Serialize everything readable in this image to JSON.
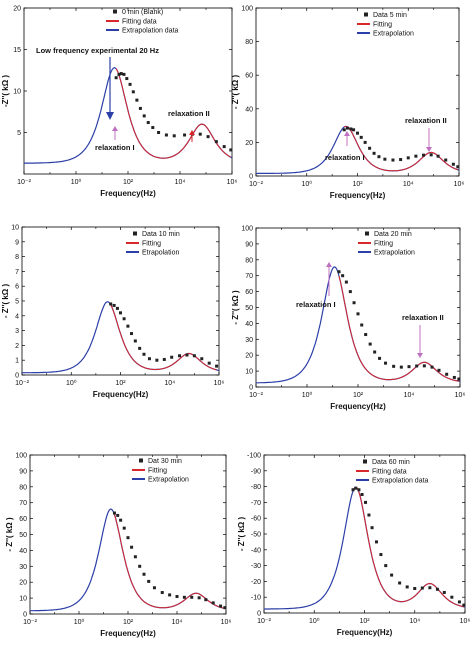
{
  "chart_data": [
    {
      "type": "line",
      "xscale": "log",
      "xlim": [
        0.01,
        1000000
      ],
      "xticks": [
        0.01,
        1,
        100,
        10000,
        1000000
      ],
      "xticklabels": [
        "10⁻²",
        "10⁰",
        "10²",
        "10⁴",
        "10⁶"
      ],
      "ylim": [
        0,
        20
      ],
      "yticks": [
        5,
        10,
        15,
        20
      ],
      "yticklabels": [
        "5",
        "10",
        "15",
        "20"
      ],
      "xlabel": "Frequency(Hz)",
      "ylabel": "-Z''( kΩ )",
      "legend": [
        "0 min (Blank)",
        "Fitting data",
        "Extrapolation data"
      ],
      "annotations": [
        "Low frequency experimental 20 Hz",
        "relaxation I",
        "relaxation II"
      ],
      "peaks": [
        {
          "f": 30,
          "z": 11.5
        },
        {
          "f": 70000,
          "z": 4.7
        }
      ],
      "baseline": 1.3,
      "data_points": [
        [
          35,
          11.6
        ],
        [
          45,
          12.0
        ],
        [
          55,
          12.1
        ],
        [
          70,
          12.0
        ],
        [
          90,
          11.5
        ],
        [
          120,
          10.8
        ],
        [
          160,
          9.9
        ],
        [
          220,
          8.9
        ],
        [
          300,
          7.9
        ],
        [
          420,
          7.0
        ],
        [
          600,
          6.2
        ],
        [
          900,
          5.6
        ],
        [
          1500,
          5.0
        ],
        [
          3000,
          4.7
        ],
        [
          6000,
          4.6
        ],
        [
          15000,
          4.7
        ],
        [
          30000,
          4.8
        ],
        [
          60000,
          4.8
        ],
        [
          120000,
          4.5
        ],
        [
          250000,
          3.9
        ],
        [
          500000,
          3.3
        ],
        [
          900000,
          2.9
        ]
      ]
    },
    {
      "type": "line",
      "xscale": "log",
      "xlim": [
        0.01,
        1000000
      ],
      "xticks": [
        0.01,
        1,
        100,
        10000,
        1000000
      ],
      "xticklabels": [
        "10⁻²",
        "10⁰",
        "10²",
        "10⁴",
        "10⁶"
      ],
      "ylim": [
        0,
        100
      ],
      "yticks": [
        0,
        20,
        40,
        60,
        80,
        100
      ],
      "yticklabels": [
        "0",
        "20",
        "40",
        "60",
        "80",
        "100"
      ],
      "xlabel": "Frequency(Hz)",
      "ylabel": "- Z''( kΩ )",
      "legend": [
        "Data 5 min",
        "Fitting",
        "Extrapolation"
      ],
      "annotations": [
        "relaxation I",
        "relaxation II"
      ],
      "peaks": [
        {
          "f": 35,
          "z": 28
        },
        {
          "f": 80000,
          "z": 12.5
        }
      ],
      "baseline": 1.5,
      "data_points": [
        [
          30,
          27.5
        ],
        [
          40,
          28.5
        ],
        [
          55,
          28.0
        ],
        [
          70,
          27.5
        ],
        [
          100,
          25.5
        ],
        [
          140,
          23.0
        ],
        [
          200,
          20.0
        ],
        [
          300,
          16.5
        ],
        [
          450,
          13.5
        ],
        [
          700,
          11.5
        ],
        [
          1200,
          10.0
        ],
        [
          2500,
          9.5
        ],
        [
          5000,
          9.8
        ],
        [
          10000,
          10.8
        ],
        [
          20000,
          11.8
        ],
        [
          40000,
          12.4
        ],
        [
          80000,
          12.6
        ],
        [
          150000,
          11.8
        ],
        [
          300000,
          9.5
        ],
        [
          600000,
          7.0
        ],
        [
          900000,
          5.5
        ]
      ]
    },
    {
      "type": "line",
      "xscale": "log",
      "xlim": [
        0.01,
        1000000
      ],
      "xticks": [
        0.01,
        1,
        100,
        10000,
        1000000
      ],
      "xticklabels": [
        "10⁻²",
        "10⁰",
        "10²",
        "10⁴",
        "10⁶"
      ],
      "ylim": [
        0,
        10
      ],
      "yticks": [
        0,
        1,
        2,
        3,
        4,
        5,
        6,
        7,
        8,
        9,
        10
      ],
      "yticklabels": [
        "0",
        "1",
        "2",
        "3",
        "4",
        "5",
        "6",
        "7",
        "8",
        "9",
        "10"
      ],
      "xlabel": "Frequency(Hz)",
      "ylabel": "- Z''( kΩ )",
      "legend": [
        "Data 10 min",
        "Fitting",
        "Etrapolation"
      ],
      "annotations": [],
      "peaks": [
        {
          "f": 30,
          "z": 4.8
        },
        {
          "f": 60000,
          "z": 1.3
        }
      ],
      "baseline": 0.15,
      "data_points": [
        [
          40,
          4.8
        ],
        [
          55,
          4.7
        ],
        [
          75,
          4.5
        ],
        [
          100,
          4.2
        ],
        [
          140,
          3.8
        ],
        [
          200,
          3.3
        ],
        [
          280,
          2.8
        ],
        [
          400,
          2.3
        ],
        [
          600,
          1.8
        ],
        [
          900,
          1.4
        ],
        [
          1500,
          1.1
        ],
        [
          3000,
          1.0
        ],
        [
          6000,
          1.05
        ],
        [
          12000,
          1.2
        ],
        [
          25000,
          1.3
        ],
        [
          50000,
          1.35
        ],
        [
          100000,
          1.3
        ],
        [
          200000,
          1.1
        ],
        [
          400000,
          0.8
        ],
        [
          800000,
          0.6
        ]
      ]
    },
    {
      "type": "line",
      "xscale": "log",
      "xlim": [
        0.01,
        1000000
      ],
      "xticks": [
        0.01,
        1,
        100,
        10000,
        1000000
      ],
      "xticklabels": [
        "10⁻²",
        "10⁰",
        "10²",
        "10⁴",
        "10⁶"
      ],
      "ylim": [
        0,
        100
      ],
      "yticks": [
        0,
        10,
        20,
        30,
        40,
        50,
        60,
        70,
        80,
        90,
        100
      ],
      "yticklabels": [
        "0",
        "10",
        "20",
        "30",
        "40",
        "50",
        "60",
        "70",
        "80",
        "90",
        "100"
      ],
      "xlabel": "Frequency(Hz)",
      "ylabel": "- Z''( kΩ )",
      "legend": [
        "Data 20 min",
        "Fitting",
        "Extrapolation"
      ],
      "annotations": [
        "relaxation I",
        "relaxation II"
      ],
      "peaks": [
        {
          "f": 12,
          "z": 73
        },
        {
          "f": 40000,
          "z": 13
        }
      ],
      "baseline": 2.5,
      "data_points": [
        [
          18,
          72.5
        ],
        [
          25,
          70.0
        ],
        [
          35,
          66.0
        ],
        [
          50,
          60.0
        ],
        [
          70,
          53.0
        ],
        [
          100,
          46.0
        ],
        [
          140,
          39.0
        ],
        [
          200,
          33.0
        ],
        [
          300,
          27.0
        ],
        [
          450,
          22.0
        ],
        [
          700,
          18.0
        ],
        [
          1200,
          15.0
        ],
        [
          2500,
          13.0
        ],
        [
          5000,
          12.5
        ],
        [
          10000,
          12.8
        ],
        [
          20000,
          13.2
        ],
        [
          40000,
          13.3
        ],
        [
          80000,
          12.5
        ],
        [
          150000,
          10.5
        ],
        [
          300000,
          8.0
        ],
        [
          600000,
          6.0
        ],
        [
          900000,
          5.0
        ]
      ]
    },
    {
      "type": "line",
      "xscale": "log",
      "xlim": [
        0.01,
        1000000
      ],
      "xticks": [
        0.01,
        1,
        100,
        10000,
        1000000
      ],
      "xticklabels": [
        "10⁻²",
        "10⁰",
        "10²",
        "10⁴",
        "10⁶"
      ],
      "ylim": [
        0,
        100
      ],
      "yticks": [
        0,
        10,
        20,
        30,
        40,
        50,
        60,
        70,
        80,
        90,
        100
      ],
      "yticklabels": [
        "0",
        "10",
        "20",
        "30",
        "40",
        "50",
        "60",
        "70",
        "80",
        "90",
        "100"
      ],
      "xlabel": "Frequency(Hz)",
      "ylabel": "- Z''( kΩ )",
      "legend": [
        "Dat 30 min",
        "Fitting",
        "Extrapolation"
      ],
      "annotations": [],
      "peaks": [
        {
          "f": 20,
          "z": 64
        },
        {
          "f": 60000,
          "z": 11
        }
      ],
      "baseline": 2.0,
      "data_points": [
        [
          28,
          63.5
        ],
        [
          38,
          62.0
        ],
        [
          50,
          59.0
        ],
        [
          70,
          54.0
        ],
        [
          100,
          48.0
        ],
        [
          140,
          42.0
        ],
        [
          200,
          36.0
        ],
        [
          300,
          30.0
        ],
        [
          450,
          25.0
        ],
        [
          700,
          20.5
        ],
        [
          1200,
          16.5
        ],
        [
          2500,
          13.5
        ],
        [
          5000,
          12.0
        ],
        [
          10000,
          11.0
        ],
        [
          20000,
          10.5
        ],
        [
          40000,
          10.5
        ],
        [
          80000,
          10.2
        ],
        [
          150000,
          9.0
        ],
        [
          300000,
          7.0
        ],
        [
          600000,
          5.0
        ],
        [
          900000,
          4.0
        ]
      ]
    },
    {
      "type": "line",
      "xscale": "log",
      "xlim": [
        0.01,
        1000000
      ],
      "xticks": [
        0.01,
        1,
        100,
        10000,
        1000000
      ],
      "xticklabels": [
        "10⁻²",
        "10⁰",
        "10²",
        "10⁴",
        "10⁶"
      ],
      "ylim": [
        0,
        100
      ],
      "yticks": [
        0,
        10,
        20,
        30,
        40,
        50,
        60,
        70,
        80,
        90,
        100
      ],
      "yticklabels": [
        "0",
        "-10",
        "-20",
        "-30",
        "-40",
        "-50",
        "-60",
        "-70",
        "-80",
        "-90",
        "-100"
      ],
      "xlabel": "Frequency(Hz)",
      "ylabel": "- Z''( kΩ )",
      "legend": [
        "Data 60 min",
        "Fitting data",
        "Extrapolation data"
      ],
      "annotations": [],
      "peaks": [
        {
          "f": 45,
          "z": 77
        },
        {
          "f": 40000,
          "z": 16
        }
      ],
      "baseline": 2.5,
      "data_points": [
        [
          35,
          78.0
        ],
        [
          45,
          79.0
        ],
        [
          60,
          78.0
        ],
        [
          80,
          75.0
        ],
        [
          110,
          70.0
        ],
        [
          150,
          62.0
        ],
        [
          200,
          54.0
        ],
        [
          300,
          45.0
        ],
        [
          450,
          37.0
        ],
        [
          700,
          30.0
        ],
        [
          1200,
          24.0
        ],
        [
          2500,
          19.0
        ],
        [
          5000,
          16.5
        ],
        [
          10000,
          15.5
        ],
        [
          20000,
          15.8
        ],
        [
          40000,
          16.0
        ],
        [
          80000,
          15.0
        ],
        [
          150000,
          13.0
        ],
        [
          300000,
          10.0
        ],
        [
          600000,
          7.0
        ],
        [
          900000,
          5.0
        ]
      ]
    }
  ]
}
